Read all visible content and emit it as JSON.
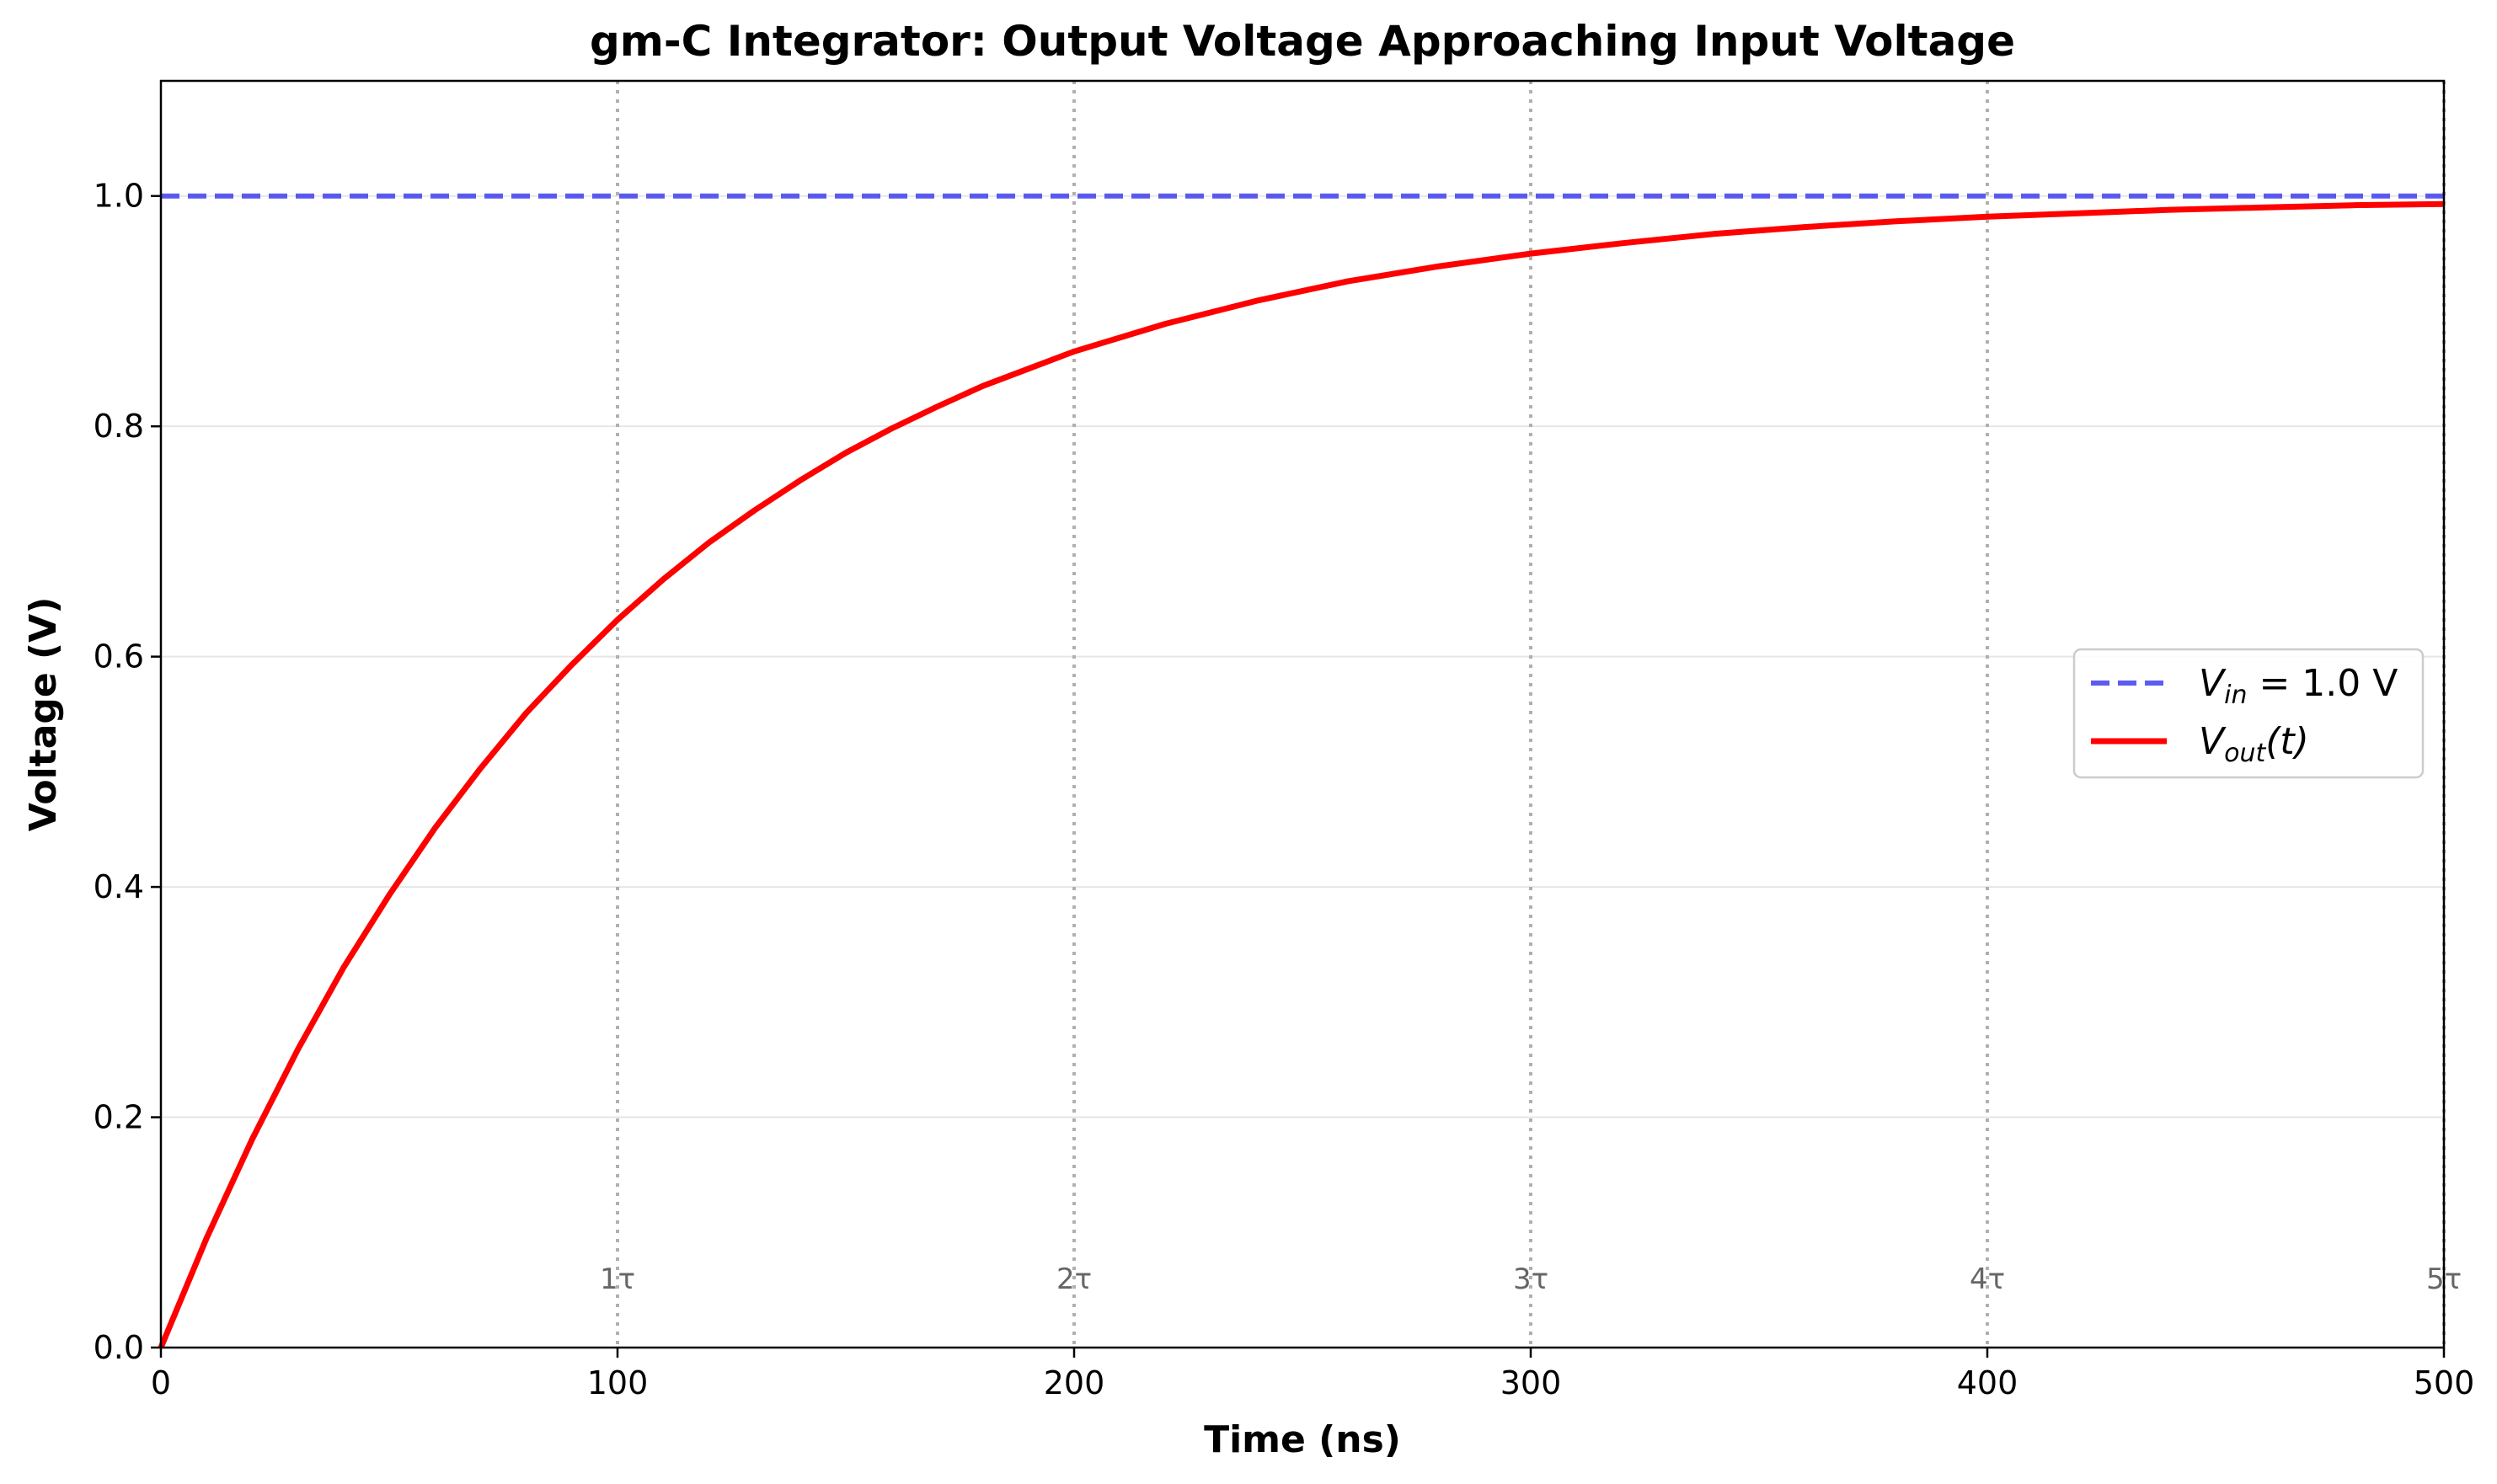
{
  "chart_data": {
    "type": "line",
    "title": "gm-C Integrator: Output Voltage Approaching Input Voltage",
    "xlabel": "Time (ns)",
    "ylabel": "Voltage (V)",
    "xlim": [
      0,
      500
    ],
    "ylim": [
      0,
      1.1
    ],
    "x_ticks": [
      0,
      100,
      200,
      300,
      400,
      500
    ],
    "x_tick_labels": [
      "0",
      "100",
      "200",
      "300",
      "400",
      "500"
    ],
    "y_ticks": [
      0.0,
      0.2,
      0.4,
      0.6,
      0.8,
      1.0
    ],
    "y_tick_labels": [
      "0.0",
      "0.2",
      "0.4",
      "0.6",
      "0.8",
      "1.0"
    ],
    "grid": true,
    "legend_position": "center-right",
    "tau_markers": [
      {
        "x": 100,
        "label": "1τ"
      },
      {
        "x": 200,
        "label": "2τ"
      },
      {
        "x": 300,
        "label": "3τ"
      },
      {
        "x": 400,
        "label": "4τ"
      },
      {
        "x": 500,
        "label": "5τ"
      }
    ],
    "tau_label_y": 0.06,
    "series": [
      {
        "name": "V_in = 1.0 V",
        "legend_main": "V",
        "legend_sub": "in",
        "legend_rest": " = 1.0 V",
        "style": "dashed",
        "color": "#3333ee",
        "x": [
          0,
          500
        ],
        "y": [
          1.0,
          1.0
        ]
      },
      {
        "name": "V_out(t)",
        "legend_main": "V",
        "legend_sub": "out",
        "legend_rest": "(t)",
        "style": "solid",
        "color": "#ff0000",
        "x": [
          0,
          10,
          20,
          30,
          40,
          50,
          60,
          70,
          80,
          90,
          100,
          110,
          120,
          130,
          140,
          150,
          160,
          170,
          180,
          190,
          200,
          220,
          240,
          260,
          280,
          300,
          320,
          340,
          360,
          380,
          400,
          420,
          440,
          460,
          480,
          500
        ],
        "y": [
          0.0,
          0.095,
          0.181,
          0.259,
          0.33,
          0.393,
          0.451,
          0.503,
          0.551,
          0.593,
          0.632,
          0.667,
          0.699,
          0.727,
          0.753,
          0.777,
          0.798,
          0.817,
          0.835,
          0.85,
          0.865,
          0.889,
          0.909,
          0.926,
          0.939,
          0.95,
          0.959,
          0.967,
          0.973,
          0.978,
          0.982,
          0.985,
          0.988,
          0.99,
          0.992,
          0.993
        ]
      }
    ]
  }
}
